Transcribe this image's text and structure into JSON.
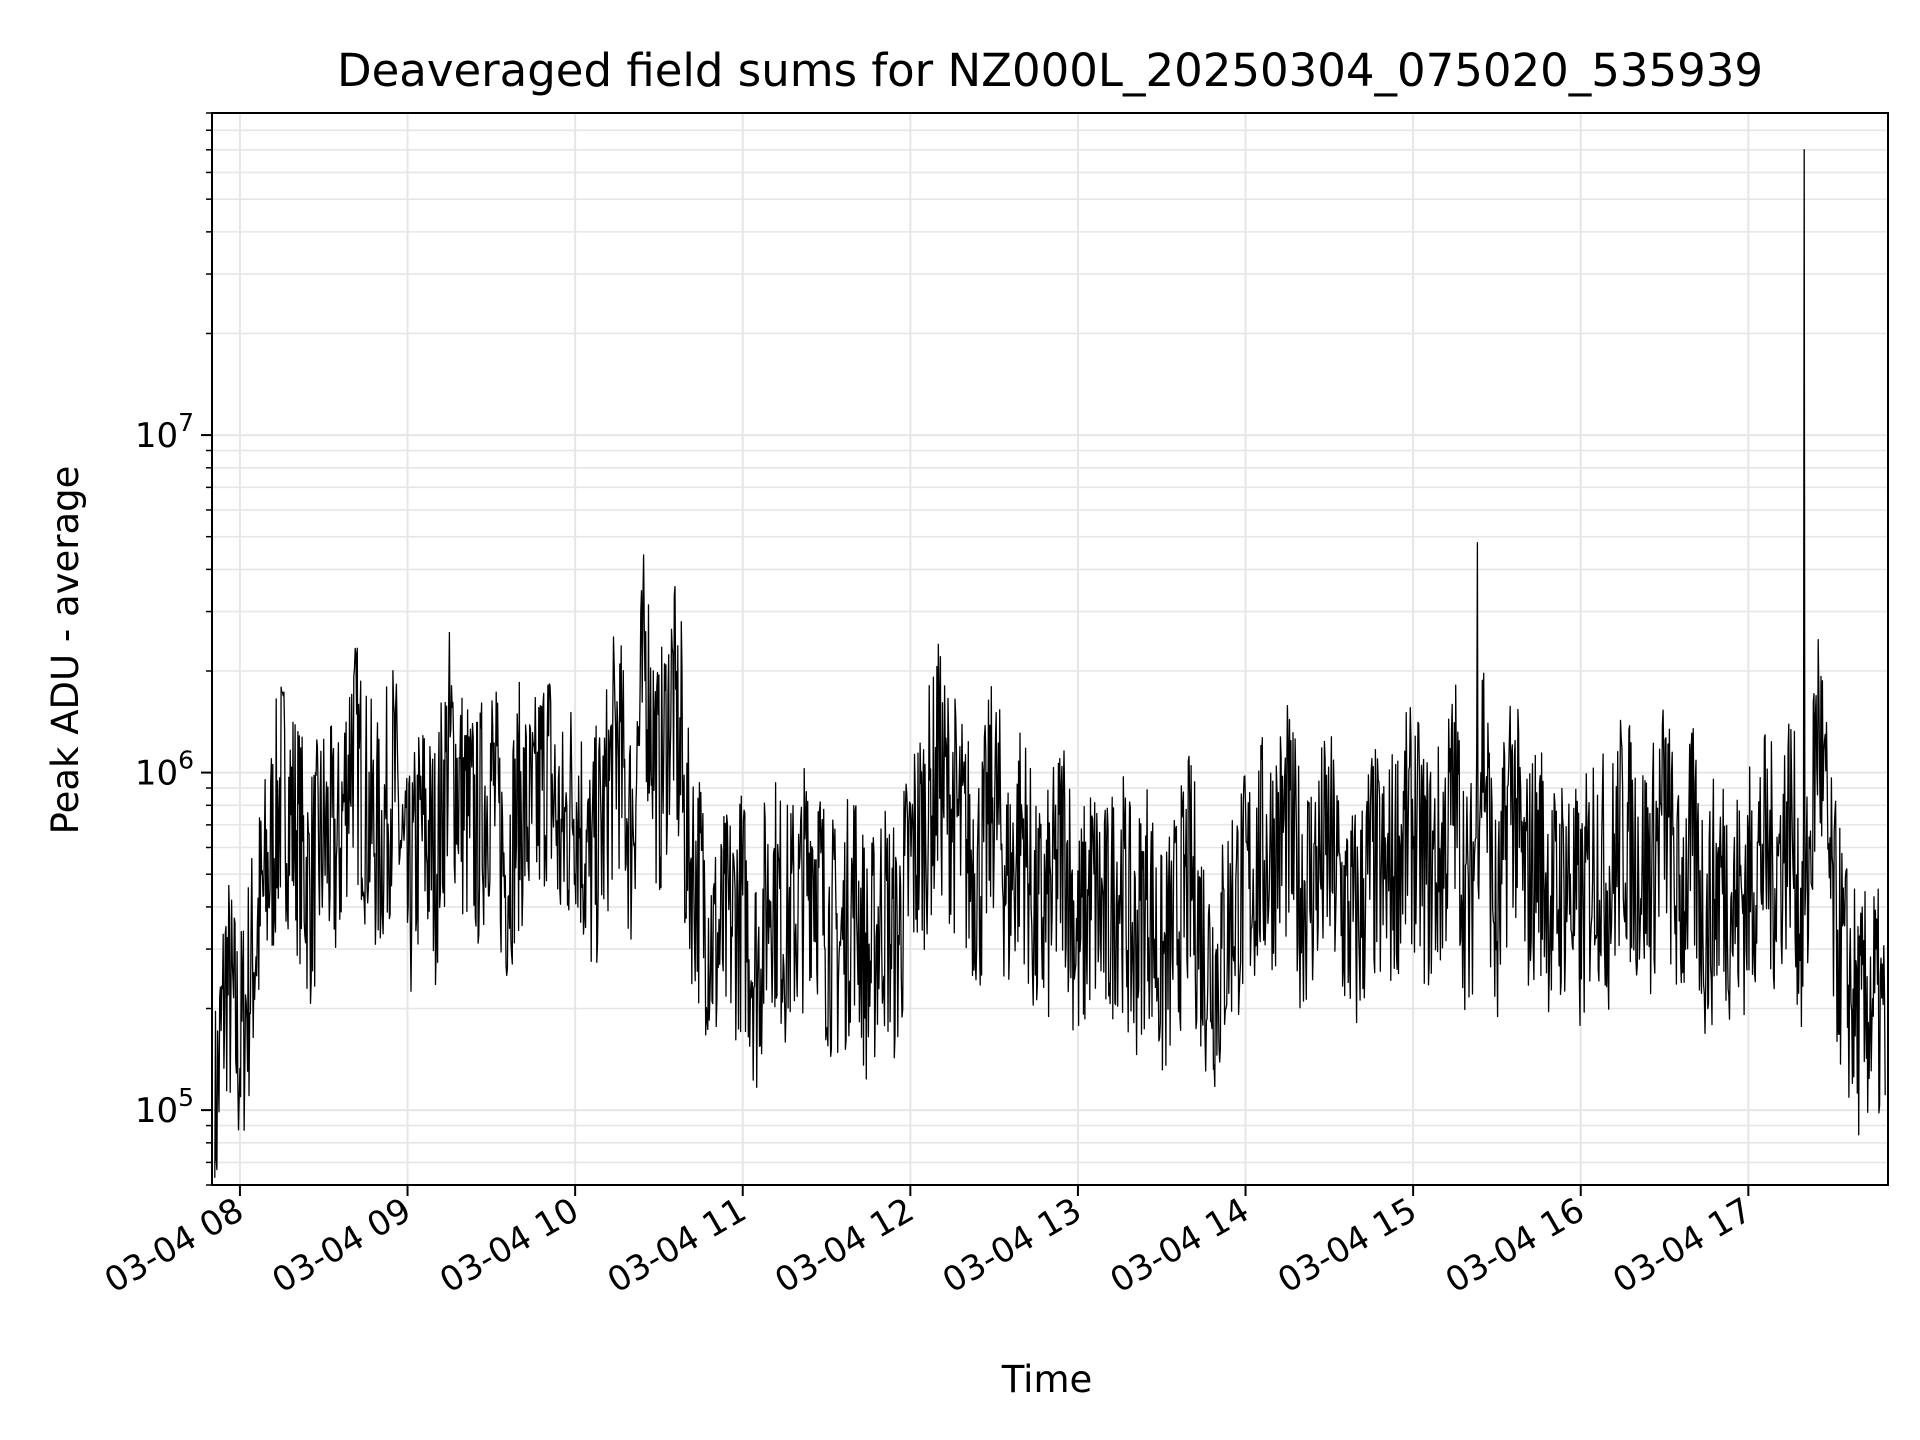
{
  "chart_data": {
    "type": "line",
    "title": "Deaveraged field sums for NZ000L_20250304_075020_535939",
    "xlabel": "Time",
    "ylabel": "Peak ADU - average",
    "yscale": "log",
    "grid": true,
    "legend": "none",
    "xlim": [
      "2025-03-04 07:50",
      "2025-03-04 17:50"
    ],
    "ylim": [
      60000,
      90000000
    ],
    "x_ticks": [
      {
        "value": "2025-03-04 08:00",
        "label": "03-04 08"
      },
      {
        "value": "2025-03-04 09:00",
        "label": "03-04 09"
      },
      {
        "value": "2025-03-04 10:00",
        "label": "03-04 10"
      },
      {
        "value": "2025-03-04 11:00",
        "label": "03-04 11"
      },
      {
        "value": "2025-03-04 12:00",
        "label": "03-04 12"
      },
      {
        "value": "2025-03-04 13:00",
        "label": "03-04 13"
      },
      {
        "value": "2025-03-04 14:00",
        "label": "03-04 14"
      },
      {
        "value": "2025-03-04 15:00",
        "label": "03-04 15"
      },
      {
        "value": "2025-03-04 16:00",
        "label": "03-04 16"
      },
      {
        "value": "2025-03-04 17:00",
        "label": "03-04 17"
      }
    ],
    "y_ticks": [
      {
        "value": 100000,
        "base": "10",
        "exp": "5"
      },
      {
        "value": 1000000,
        "base": "10",
        "exp": "6"
      },
      {
        "value": 10000000,
        "base": "10",
        "exp": "7"
      }
    ],
    "line_color": "#000000",
    "grid_color": "#e6e6e6",
    "series": [
      {
        "x": [
          "2025-03-04 07:51",
          "2025-03-04 07:55",
          "2025-03-04 08:00",
          "2025-03-04 08:05",
          "2025-03-04 08:10",
          "2025-03-04 08:15",
          "2025-03-04 08:20",
          "2025-03-04 08:25",
          "2025-03-04 08:30",
          "2025-03-04 08:35",
          "2025-03-04 08:40",
          "2025-03-04 08:45",
          "2025-03-04 08:50",
          "2025-03-04 08:55",
          "2025-03-04 09:00",
          "2025-03-04 09:05",
          "2025-03-04 09:10",
          "2025-03-04 09:15",
          "2025-03-04 09:20",
          "2025-03-04 09:25",
          "2025-03-04 09:30",
          "2025-03-04 09:35",
          "2025-03-04 09:40",
          "2025-03-04 09:45",
          "2025-03-04 09:50",
          "2025-03-04 09:55",
          "2025-03-04 10:00",
          "2025-03-04 10:05",
          "2025-03-04 10:10",
          "2025-03-04 10:15",
          "2025-03-04 10:20",
          "2025-03-04 10:25",
          "2025-03-04 10:30",
          "2025-03-04 10:35",
          "2025-03-04 10:40",
          "2025-03-04 10:45",
          "2025-03-04 10:50",
          "2025-03-04 10:55",
          "2025-03-04 11:00",
          "2025-03-04 11:05",
          "2025-03-04 11:10",
          "2025-03-04 11:15",
          "2025-03-04 11:20",
          "2025-03-04 11:25",
          "2025-03-04 11:30",
          "2025-03-04 11:35",
          "2025-03-04 11:40",
          "2025-03-04 11:45",
          "2025-03-04 11:50",
          "2025-03-04 11:55",
          "2025-03-04 12:00",
          "2025-03-04 12:05",
          "2025-03-04 12:10",
          "2025-03-04 12:15",
          "2025-03-04 12:20",
          "2025-03-04 12:25",
          "2025-03-04 12:30",
          "2025-03-04 12:35",
          "2025-03-04 12:40",
          "2025-03-04 12:45",
          "2025-03-04 12:50",
          "2025-03-04 12:55",
          "2025-03-04 13:00",
          "2025-03-04 13:05",
          "2025-03-04 13:10",
          "2025-03-04 13:15",
          "2025-03-04 13:20",
          "2025-03-04 13:25",
          "2025-03-04 13:30",
          "2025-03-04 13:35",
          "2025-03-04 13:40",
          "2025-03-04 13:45",
          "2025-03-04 13:50",
          "2025-03-04 13:55",
          "2025-03-04 14:00",
          "2025-03-04 14:05",
          "2025-03-04 14:10",
          "2025-03-04 14:15",
          "2025-03-04 14:20",
          "2025-03-04 14:25",
          "2025-03-04 14:30",
          "2025-03-04 14:35",
          "2025-03-04 14:40",
          "2025-03-04 14:45",
          "2025-03-04 14:50",
          "2025-03-04 14:55",
          "2025-03-04 15:00",
          "2025-03-04 15:05",
          "2025-03-04 15:10",
          "2025-03-04 15:15",
          "2025-03-04 15:20",
          "2025-03-04 15:25",
          "2025-03-04 15:30",
          "2025-03-04 15:35",
          "2025-03-04 15:40",
          "2025-03-04 15:45",
          "2025-03-04 15:50",
          "2025-03-04 15:55",
          "2025-03-04 16:00",
          "2025-03-04 16:05",
          "2025-03-04 16:10",
          "2025-03-04 16:15",
          "2025-03-04 16:20",
          "2025-03-04 16:25",
          "2025-03-04 16:30",
          "2025-03-04 16:35",
          "2025-03-04 16:40",
          "2025-03-04 16:45",
          "2025-03-04 16:50",
          "2025-03-04 16:55",
          "2025-03-04 17:00",
          "2025-03-04 17:05",
          "2025-03-04 17:10",
          "2025-03-04 17:15",
          "2025-03-04 17:20",
          "2025-03-04 17:25",
          "2025-03-04 17:30",
          "2025-03-04 17:35",
          "2025-03-04 17:40",
          "2025-03-04 17:45",
          "2025-03-04 17:49"
        ],
        "values": [
          90000,
          250000,
          150000,
          300000,
          500000,
          900000,
          700000,
          450000,
          650000,
          550000,
          1300000,
          800000,
          600000,
          1000000,
          400000,
          700000,
          550000,
          1200000,
          800000,
          650000,
          1000000,
          500000,
          800000,
          700000,
          1100000,
          600000,
          900000,
          500000,
          700000,
          1300000,
          650000,
          2200000,
          900000,
          1800000,
          600000,
          450000,
          300000,
          350000,
          400000,
          250000,
          500000,
          350000,
          400000,
          600000,
          350000,
          300000,
          450000,
          250000,
          400000,
          300000,
          550000,
          700000,
          1000000,
          800000,
          600000,
          500000,
          900000,
          450000,
          700000,
          350000,
          400000,
          650000,
          300000,
          450000,
          350000,
          500000,
          300000,
          450000,
          250000,
          350000,
          500000,
          300000,
          250000,
          400000,
          450000,
          550000,
          600000,
          700000,
          450000,
          500000,
          600000,
          400000,
          350000,
          550000,
          450000,
          600000,
          700000,
          500000,
          550000,
          900000,
          350000,
          1300000,
          300000,
          1000000,
          450000,
          600000,
          400000,
          500000,
          350000,
          600000,
          450000,
          700000,
          550000,
          500000,
          800000,
          400000,
          600000,
          350000,
          500000,
          400000,
          450000,
          600000,
          500000,
          750000,
          300000,
          1500000,
          400000,
          250000,
          180000,
          220000,
          160000
        ]
      }
    ],
    "spikes": [
      {
        "x": "2025-03-04 15:23",
        "y": 4800000
      },
      {
        "x": "2025-03-04 17:20",
        "y": 70000000
      },
      {
        "x": "2025-03-04 10:38",
        "y": 2800000
      },
      {
        "x": "2025-03-04 12:10",
        "y": 2400000
      }
    ]
  }
}
